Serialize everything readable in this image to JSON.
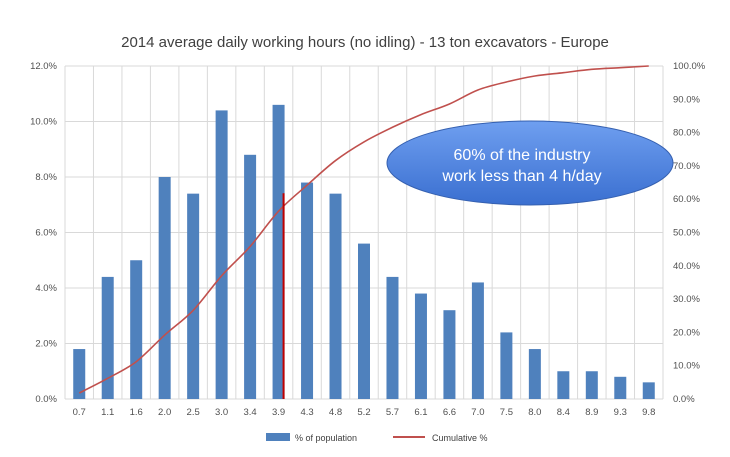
{
  "chart_data": {
    "type": "bar",
    "title": "2014 average daily working hours  (no idling) - 13 ton excavators - Europe",
    "categories": [
      "0.7",
      "1.1",
      "1.6",
      "2.0",
      "2.5",
      "3.0",
      "3.4",
      "3.9",
      "4.3",
      "4.8",
      "5.2",
      "5.7",
      "6.1",
      "6.6",
      "7.0",
      "7.5",
      "8.0",
      "8.4",
      "8.9",
      "9.3",
      "9.8"
    ],
    "series": [
      {
        "name": "% of population",
        "type": "bar",
        "axis": "left",
        "color": "#4f81bd",
        "values": [
          1.8,
          4.4,
          5.0,
          8.0,
          7.4,
          10.4,
          8.8,
          10.6,
          7.8,
          7.4,
          5.6,
          4.4,
          3.8,
          3.2,
          4.2,
          2.4,
          1.8,
          1.0,
          1.0,
          0.8,
          0.6
        ]
      },
      {
        "name": "Cumulative %",
        "type": "line",
        "axis": "right",
        "color": "#c0504d",
        "values": [
          1.8,
          6.2,
          11.2,
          19.2,
          26.6,
          37.0,
          45.8,
          56.4,
          64.2,
          71.6,
          77.2,
          81.6,
          85.4,
          88.6,
          92.8,
          95.2,
          97.0,
          98.0,
          99.0,
          99.5,
          100.0
        ]
      }
    ],
    "y_left": {
      "min": 0,
      "max": 12,
      "step": 2,
      "ticks": [
        "0.0%",
        "2.0%",
        "4.0%",
        "6.0%",
        "8.0%",
        "10.0%",
        "12.0%"
      ]
    },
    "y_right": {
      "min": 0,
      "max": 100,
      "step": 10,
      "ticks": [
        "0.0%",
        "10.0%",
        "20.0%",
        "30.0%",
        "40.0%",
        "50.0%",
        "60.0%",
        "70.0%",
        "80.0%",
        "90.0%",
        "100.0%"
      ]
    },
    "grid": true,
    "legend_position": "bottom",
    "annotation": {
      "lines": [
        "60% of the industry",
        "work less than 4 h/day"
      ],
      "fill": "#4f81e0",
      "marker_category": "3.9",
      "marker_color": "#c00000"
    }
  }
}
